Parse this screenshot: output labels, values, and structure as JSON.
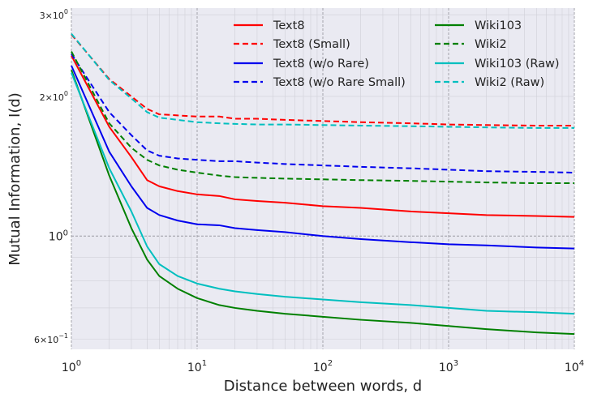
{
  "chart_data": {
    "type": "line",
    "x_scale": "log",
    "y_scale": "log",
    "xlim": [
      1,
      10000
    ],
    "ylim": [
      0.57,
      3.1
    ],
    "xlabel": "Distance between words, d",
    "ylabel": "Mutual Information, I(d)",
    "grid": true,
    "legend_position": "top-right",
    "legend_columns": 2,
    "x_ticks": [
      {
        "value": 1,
        "base": "10",
        "exp": "0"
      },
      {
        "value": 10,
        "base": "10",
        "exp": "1"
      },
      {
        "value": 100,
        "base": "10",
        "exp": "2"
      },
      {
        "value": 1000,
        "base": "10",
        "exp": "3"
      },
      {
        "value": 10000,
        "base": "10",
        "exp": "4"
      }
    ],
    "y_ticks": [
      {
        "value": 0.6,
        "mant": "6×10",
        "exp": "−1",
        "small": true
      },
      {
        "value": 1.0,
        "mant": "10",
        "exp": "0",
        "small": false
      },
      {
        "value": 2.0,
        "mant": "2×10",
        "exp": "0",
        "small": true
      },
      {
        "value": 3.0,
        "mant": "3×10",
        "exp": "0",
        "small": true
      }
    ],
    "series": [
      {
        "name": "Text8",
        "color": "#ff0000",
        "dash": "solid",
        "points": [
          [
            1,
            2.45
          ],
          [
            2,
            1.72
          ],
          [
            3,
            1.48
          ],
          [
            4,
            1.32
          ],
          [
            5,
            1.28
          ],
          [
            7,
            1.25
          ],
          [
            10,
            1.23
          ],
          [
            15,
            1.22
          ],
          [
            20,
            1.2
          ],
          [
            30,
            1.19
          ],
          [
            50,
            1.18
          ],
          [
            100,
            1.16
          ],
          [
            200,
            1.15
          ],
          [
            500,
            1.13
          ],
          [
            1000,
            1.12
          ],
          [
            2000,
            1.11
          ],
          [
            5000,
            1.105
          ],
          [
            10000,
            1.1
          ]
        ]
      },
      {
        "name": "Text8 (Small)",
        "color": "#ff0000",
        "dash": "dashed",
        "points": [
          [
            1,
            2.72
          ],
          [
            2,
            2.18
          ],
          [
            3,
            2.0
          ],
          [
            4,
            1.88
          ],
          [
            5,
            1.83
          ],
          [
            7,
            1.82
          ],
          [
            10,
            1.81
          ],
          [
            15,
            1.81
          ],
          [
            20,
            1.79
          ],
          [
            30,
            1.79
          ],
          [
            50,
            1.78
          ],
          [
            100,
            1.77
          ],
          [
            200,
            1.76
          ],
          [
            500,
            1.75
          ],
          [
            1000,
            1.74
          ],
          [
            2000,
            1.735
          ],
          [
            5000,
            1.73
          ],
          [
            10000,
            1.73
          ]
        ]
      },
      {
        "name": "Text8 (w/o Rare)",
        "color": "#0000ee",
        "dash": "solid",
        "points": [
          [
            1,
            2.33
          ],
          [
            2,
            1.52
          ],
          [
            3,
            1.28
          ],
          [
            4,
            1.15
          ],
          [
            5,
            1.11
          ],
          [
            7,
            1.08
          ],
          [
            10,
            1.06
          ],
          [
            15,
            1.055
          ],
          [
            20,
            1.04
          ],
          [
            30,
            1.03
          ],
          [
            50,
            1.02
          ],
          [
            100,
            1.0
          ],
          [
            200,
            0.985
          ],
          [
            500,
            0.97
          ],
          [
            1000,
            0.96
          ],
          [
            2000,
            0.955
          ],
          [
            5000,
            0.945
          ],
          [
            10000,
            0.94
          ]
        ]
      },
      {
        "name": "Text8 (w/o Rare Small)",
        "color": "#0000ee",
        "dash": "dashed",
        "points": [
          [
            1,
            2.47
          ],
          [
            2,
            1.85
          ],
          [
            3,
            1.65
          ],
          [
            4,
            1.53
          ],
          [
            5,
            1.49
          ],
          [
            7,
            1.47
          ],
          [
            10,
            1.46
          ],
          [
            15,
            1.45
          ],
          [
            20,
            1.45
          ],
          [
            30,
            1.44
          ],
          [
            50,
            1.43
          ],
          [
            100,
            1.42
          ],
          [
            200,
            1.41
          ],
          [
            500,
            1.4
          ],
          [
            1000,
            1.39
          ],
          [
            2000,
            1.38
          ],
          [
            5000,
            1.375
          ],
          [
            10000,
            1.37
          ]
        ]
      },
      {
        "name": "Wiki103",
        "color": "#008000",
        "dash": "solid",
        "points": [
          [
            1,
            2.28
          ],
          [
            2,
            1.35
          ],
          [
            3,
            1.04
          ],
          [
            4,
            0.89
          ],
          [
            5,
            0.82
          ],
          [
            7,
            0.77
          ],
          [
            10,
            0.735
          ],
          [
            15,
            0.71
          ],
          [
            20,
            0.7
          ],
          [
            30,
            0.69
          ],
          [
            50,
            0.68
          ],
          [
            100,
            0.67
          ],
          [
            200,
            0.66
          ],
          [
            500,
            0.65
          ],
          [
            1000,
            0.64
          ],
          [
            2000,
            0.63
          ],
          [
            5000,
            0.62
          ],
          [
            10000,
            0.615
          ]
        ]
      },
      {
        "name": "Wiki2",
        "color": "#008000",
        "dash": "dashed",
        "points": [
          [
            1,
            2.5
          ],
          [
            2,
            1.75
          ],
          [
            3,
            1.55
          ],
          [
            4,
            1.46
          ],
          [
            5,
            1.42
          ],
          [
            7,
            1.39
          ],
          [
            10,
            1.37
          ],
          [
            15,
            1.35
          ],
          [
            20,
            1.34
          ],
          [
            30,
            1.335
          ],
          [
            50,
            1.33
          ],
          [
            100,
            1.325
          ],
          [
            200,
            1.32
          ],
          [
            500,
            1.315
          ],
          [
            1000,
            1.31
          ],
          [
            2000,
            1.305
          ],
          [
            5000,
            1.3
          ],
          [
            10000,
            1.3
          ]
        ]
      },
      {
        "name": "Wiki103 (Raw)",
        "color": "#00bfbf",
        "dash": "solid",
        "points": [
          [
            1,
            2.25
          ],
          [
            2,
            1.4
          ],
          [
            3,
            1.13
          ],
          [
            4,
            0.95
          ],
          [
            5,
            0.87
          ],
          [
            7,
            0.82
          ],
          [
            10,
            0.79
          ],
          [
            15,
            0.77
          ],
          [
            20,
            0.76
          ],
          [
            30,
            0.75
          ],
          [
            50,
            0.74
          ],
          [
            100,
            0.73
          ],
          [
            200,
            0.72
          ],
          [
            500,
            0.71
          ],
          [
            1000,
            0.7
          ],
          [
            2000,
            0.69
          ],
          [
            5000,
            0.685
          ],
          [
            10000,
            0.68
          ]
        ]
      },
      {
        "name": "Wiki2 (Raw)",
        "color": "#00bfbf",
        "dash": "dashed",
        "points": [
          [
            1,
            2.73
          ],
          [
            2,
            2.17
          ],
          [
            3,
            1.98
          ],
          [
            4,
            1.85
          ],
          [
            5,
            1.8
          ],
          [
            7,
            1.78
          ],
          [
            10,
            1.76
          ],
          [
            15,
            1.75
          ],
          [
            20,
            1.745
          ],
          [
            30,
            1.74
          ],
          [
            50,
            1.74
          ],
          [
            100,
            1.735
          ],
          [
            200,
            1.73
          ],
          [
            500,
            1.725
          ],
          [
            1000,
            1.72
          ],
          [
            2000,
            1.715
          ],
          [
            5000,
            1.71
          ],
          [
            10000,
            1.71
          ]
        ]
      }
    ]
  }
}
